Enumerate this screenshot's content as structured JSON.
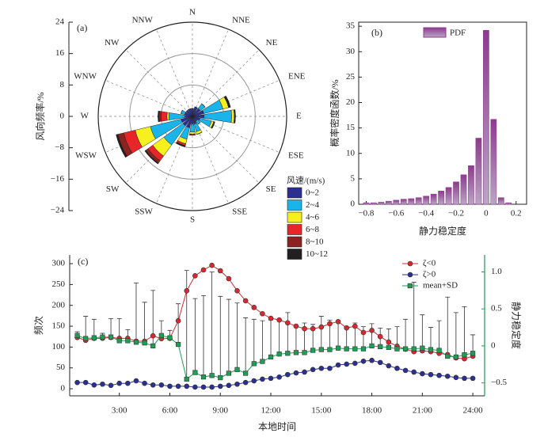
{
  "chart_data": [
    {
      "type": "windrose",
      "title": "(a)",
      "ylabel": "风向频率/%",
      "legend_title": "风速/(m/s)",
      "legend": "lower right",
      "ylim": [
        -24,
        24
      ],
      "yticks": [
        {
          "value": -24,
          "label": "−24"
        },
        {
          "value": -16,
          "label": "−16"
        },
        {
          "value": -8,
          "label": "−8"
        },
        0,
        8,
        16,
        24
      ],
      "categories": [
        "N",
        "NNE",
        "NE",
        "ENE",
        "E",
        "ESE",
        "SE",
        "SSE",
        "S",
        "SSW",
        "SW",
        "WSW",
        "W",
        "WNW",
        "NW",
        "NNW"
      ],
      "series": [
        {
          "name": "0~2",
          "color": "#2b2f8f",
          "values": [
            2,
            2.5,
            2.5,
            3,
            3,
            2,
            1.5,
            2,
            2,
            3,
            3,
            3,
            2,
            2,
            2,
            2
          ]
        },
        {
          "name": "2~4",
          "color": "#19b5ea",
          "values": [
            0,
            0,
            1.5,
            5,
            7,
            3,
            1,
            2,
            2,
            3,
            6,
            8,
            4,
            1,
            0,
            0
          ]
        },
        {
          "name": "4~6",
          "color": "#f5f01e",
          "values": [
            0,
            0,
            0,
            1.5,
            0.7,
            0.6,
            0,
            0.7,
            0.5,
            1.2,
            3.5,
            4,
            0.5,
            0,
            0,
            0
          ]
        },
        {
          "name": "6~8",
          "color": "#e8262a",
          "values": [
            0,
            0,
            0,
            0,
            0,
            0,
            0,
            0,
            0.3,
            0.5,
            1.5,
            3,
            1.5,
            0,
            0,
            0
          ]
        },
        {
          "name": "8~10",
          "color": "#8c2320",
          "values": [
            0,
            0,
            0,
            0,
            0,
            0,
            0,
            0,
            0,
            0,
            0.7,
            1.5,
            0.5,
            0,
            0,
            0
          ]
        },
        {
          "name": "10~12",
          "color": "#231f20",
          "values": [
            0,
            0,
            0,
            0.5,
            0.3,
            0.3,
            0,
            0,
            0,
            0.3,
            0.3,
            0.5,
            0.3,
            0,
            0,
            0
          ]
        }
      ]
    },
    {
      "type": "histogram",
      "title": "(b)",
      "xlabel": "静力稳定度",
      "ylabel": "概率密度函数/%",
      "legend": "upper center",
      "series_name": "PDF",
      "color": "#8e3a8e",
      "bins": [
        -0.825,
        -0.775,
        -0.725,
        -0.675,
        -0.625,
        -0.575,
        -0.525,
        -0.475,
        -0.425,
        -0.375,
        -0.325,
        -0.275,
        -0.225,
        -0.175,
        -0.125,
        -0.075,
        -0.025,
        0.025,
        0.075,
        0.125,
        0.175
      ],
      "values": [
        0.3,
        0.3,
        0.4,
        0.6,
        0.8,
        1.0,
        1.1,
        1.3,
        1.6,
        2.0,
        2.6,
        3.3,
        4.4,
        5.8,
        7.6,
        13,
        34.2,
        16.7,
        1.3,
        0.3
      ],
      "xlim": [
        -0.85,
        0.27
      ],
      "ylim": [
        0,
        35.8
      ],
      "xticks": [
        {
          "value": -0.8,
          "label": "−0.8"
        },
        {
          "value": -0.6,
          "label": "−0.6"
        },
        {
          "value": -0.4,
          "label": "−0.4"
        },
        {
          "value": -0.2,
          "label": "−0.2"
        },
        0,
        0.2
      ],
      "yticks": [
        0,
        5,
        10,
        15,
        20,
        25,
        30,
        35
      ]
    },
    {
      "type": "line",
      "title": "(c)",
      "xlabel": "本地时间",
      "ylabel": "频次",
      "y2label": "静力稳定度",
      "legend": "upper right",
      "x": [
        0.5,
        1,
        1.5,
        2,
        2.5,
        3,
        3.5,
        4,
        4.5,
        5,
        5.5,
        6,
        6.5,
        7,
        7.5,
        8,
        8.5,
        9,
        9.5,
        10,
        10.5,
        11,
        11.5,
        12,
        12.5,
        13,
        13.5,
        14,
        14.5,
        15,
        15.5,
        16,
        16.5,
        17,
        17.5,
        18,
        18.5,
        19,
        19.5,
        20,
        20.5,
        21,
        21.5,
        22,
        22.5,
        23,
        23.5,
        24
      ],
      "xlim": [
        0.05,
        24.7
      ],
      "ylim": [
        -17,
        321
      ],
      "y2lim": [
        -0.675,
        1.23
      ],
      "xticks": [
        {
          "value": 3,
          "label": "3:00"
        },
        {
          "value": 6,
          "label": "6:00"
        },
        {
          "value": 9,
          "label": "9:00"
        },
        {
          "value": 12,
          "label": "12:00"
        },
        {
          "value": 15,
          "label": "15:00"
        },
        {
          "value": 18,
          "label": "18:00"
        },
        {
          "value": 21,
          "label": "21:00"
        },
        {
          "value": 24,
          "label": "24:00"
        }
      ],
      "yticks": [
        0,
        50,
        100,
        150,
        200,
        250,
        300
      ],
      "y2ticks": [
        {
          "value": -0.5,
          "label": "−0.5"
        },
        0,
        0.5,
        {
          "value": 1,
          "label": "1.0"
        }
      ],
      "series": [
        {
          "name": "ζ<0",
          "color": "#d7282f",
          "marker": "circle",
          "values": [
            123,
            116,
            121,
            121,
            123,
            121,
            121,
            114,
            114,
            127,
            120,
            121,
            163,
            235,
            271,
            285,
            296,
            283,
            264,
            235,
            211,
            195,
            180,
            169,
            165,
            158,
            150,
            144,
            144,
            148,
            156,
            161,
            146,
            150,
            135,
            140,
            125,
            112,
            102,
            95,
            89,
            91,
            89,
            85,
            82,
            74,
            72,
            78
          ]
        },
        {
          "name": "ζ>0",
          "color": "#2b2f8f",
          "marker": "circle",
          "values": [
            15,
            15,
            9,
            11,
            8,
            13,
            13,
            19,
            13,
            9,
            9,
            6,
            6,
            6,
            4,
            4,
            4,
            6,
            8,
            11,
            15,
            19,
            23,
            25,
            28,
            34,
            38,
            40,
            46,
            49,
            49,
            57,
            59,
            61,
            66,
            68,
            63,
            55,
            49,
            44,
            40,
            36,
            34,
            32,
            30,
            27,
            25,
            25
          ]
        },
        {
          "name": "mean+SD",
          "color": "#1f9d55",
          "marker": "square",
          "axis": "y2",
          "values": [
            0.14,
            0.1,
            0.11,
            0.12,
            0.12,
            0.07,
            0.07,
            0.05,
            0.04,
            0,
            0.14,
            0.11,
            0.02,
            -0.45,
            -0.36,
            -0.42,
            -0.4,
            -0.43,
            -0.37,
            -0.32,
            -0.37,
            -0.24,
            -0.21,
            -0.15,
            -0.11,
            -0.1,
            -0.09,
            -0.09,
            -0.06,
            -0.05,
            -0.05,
            -0.03,
            -0.04,
            -0.04,
            -0.04,
            0,
            -0.01,
            -0.02,
            -0.04,
            -0.04,
            -0.04,
            -0.03,
            -0.05,
            -0.06,
            -0.14,
            -0.15,
            -0.12,
            -0.1
          ],
          "errors": [
            0.05,
            0.3,
            0.25,
            0.05,
            0.25,
            0.3,
            0.15,
            0.8,
            0.55,
            0.75,
            0.2,
            0.1,
            0.55,
            1.47,
            1.0,
            1.1,
            1.4,
            1.1,
            1.0,
            0.9,
            0.75,
            0.6,
            0.55,
            0.5,
            0.45,
            0.55,
            0.35,
            0.4,
            0.35,
            0.45,
            0.4,
            0.35,
            0.3,
            0.35,
            0.3,
            0.3,
            0.25,
            0.25,
            0.3,
            0.4,
            0.9,
            0.45,
            0.3,
            0.4,
            0.8,
            0.6,
            0.65,
            0.25
          ]
        }
      ]
    }
  ]
}
